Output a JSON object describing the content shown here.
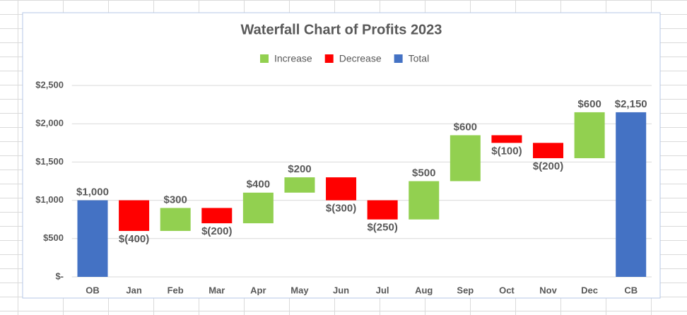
{
  "chart_data": {
    "type": "waterfall",
    "title": "Waterfall Chart of Profits 2023",
    "categories": [
      "OB",
      "Jan",
      "Feb",
      "Mar",
      "Apr",
      "May",
      "Jun",
      "Jul",
      "Aug",
      "Sep",
      "Oct",
      "Nov",
      "Dec",
      "CB"
    ],
    "series": [
      {
        "name": "Increase",
        "color": "#92d050",
        "values": [
          null,
          null,
          300,
          null,
          400,
          200,
          null,
          null,
          500,
          600,
          null,
          null,
          600,
          null
        ],
        "value_labels": [
          null,
          null,
          "$300",
          null,
          "$400",
          "$200",
          null,
          null,
          "$500",
          "$600",
          null,
          null,
          "$600",
          null
        ]
      },
      {
        "name": "Decrease",
        "color": "#ff0000",
        "values": [
          null,
          -400,
          null,
          -200,
          null,
          null,
          -300,
          -250,
          null,
          null,
          -100,
          -200,
          null,
          null
        ],
        "value_labels": [
          null,
          "$(400)",
          null,
          "$(200)",
          null,
          null,
          "$(300)",
          "$(250)",
          null,
          null,
          "$(100)",
          "$(200)",
          null,
          null
        ]
      },
      {
        "name": "Total",
        "color": "#4472c4",
        "values": [
          1000,
          null,
          null,
          null,
          null,
          null,
          null,
          null,
          null,
          null,
          null,
          null,
          null,
          2150
        ],
        "value_labels": [
          "$1,000",
          null,
          null,
          null,
          null,
          null,
          null,
          null,
          null,
          null,
          null,
          null,
          null,
          "$2,150"
        ]
      }
    ],
    "ylim": [
      0,
      2500
    ],
    "yticks": [
      {
        "value": 0,
        "label": "$-"
      },
      {
        "value": 500,
        "label": "$500"
      },
      {
        "value": 1000,
        "label": "$1,000"
      },
      {
        "value": 1500,
        "label": "$1,500"
      },
      {
        "value": 2000,
        "label": "$2,000"
      },
      {
        "value": 2500,
        "label": "$2,500"
      }
    ],
    "grid": true,
    "legend": "top"
  }
}
